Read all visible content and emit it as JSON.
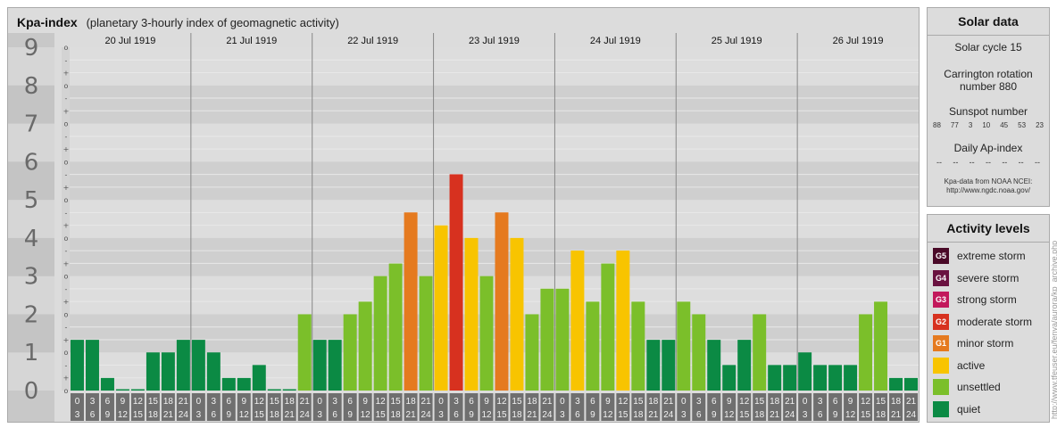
{
  "header": {
    "title": "Kpa-index",
    "subtitle": "(planetary 3-hourly index of geomagnetic activity)"
  },
  "chart_data": {
    "type": "bar",
    "title": "Kpa-index",
    "subtitle": "(planetary 3-hourly index of geomagnetic activity)",
    "ylim": [
      0,
      9
    ],
    "y_ticks": [
      "0",
      "1",
      "2",
      "3",
      "4",
      "5",
      "6",
      "7",
      "8",
      "9"
    ],
    "y_minor_ticks": [
      "o",
      "+",
      "-"
    ],
    "days": [
      "20 Jul 1919",
      "21 Jul 1919",
      "22 Jul 1919",
      "23 Jul 1919",
      "24 Jul 1919",
      "25 Jul 1919",
      "26 Jul 1919"
    ],
    "interval_top": [
      "0",
      "3",
      "6",
      "9",
      "12",
      "15",
      "18",
      "21"
    ],
    "interval_bottom": [
      "3",
      "6",
      "9",
      "12",
      "15",
      "18",
      "21",
      "24"
    ],
    "values": [
      1.33,
      1.33,
      0.33,
      0,
      0,
      1.0,
      1.0,
      1.33,
      1.33,
      1.0,
      0.33,
      0.33,
      0.67,
      0,
      0,
      2.0,
      1.33,
      1.33,
      2.0,
      2.33,
      3.0,
      3.33,
      4.67,
      3.0,
      4.33,
      5.67,
      4.0,
      3.0,
      4.67,
      4.0,
      2.0,
      2.67,
      2.67,
      3.67,
      2.33,
      3.33,
      3.67,
      2.33,
      1.33,
      1.33,
      2.33,
      2.0,
      1.33,
      0.67,
      1.33,
      2.0,
      0.67,
      0.67,
      1.0,
      0.67,
      0.67,
      0.67,
      2.0,
      2.33,
      0.33,
      0.33
    ],
    "levels": [
      "extreme storm",
      "severe storm",
      "strong storm",
      "moderate storm",
      "minor storm",
      "active",
      "unsettled",
      "quiet"
    ],
    "colors": {
      "quiet": "#0b8a44",
      "unsettled": "#7bbf2a",
      "active": "#f8c400",
      "minor_storm": "#e57a1f",
      "moderate_storm": "#d7311f",
      "strong_storm": "#c2185b",
      "severe_storm": "#6a1240",
      "extreme_storm": "#4a0a28"
    },
    "grid": true
  },
  "solar": {
    "heading": "Solar data",
    "cycle": "Solar cycle 15",
    "carrington": "Carrington rotation number 880",
    "sunspot_label": "Sunspot number",
    "sunspots": [
      "88",
      "77",
      "3",
      "10",
      "45",
      "53",
      "23"
    ],
    "ap_label": "Daily Ap-index",
    "ap_values": [
      "--",
      "--",
      "--",
      "--",
      "--",
      "--",
      "--"
    ],
    "note_line1": "Kpa-data from NOAA NCEI:",
    "note_line2": "http://www.ngdc.noaa.gov/"
  },
  "legend": {
    "heading": "Activity levels",
    "items": [
      {
        "code": "G5",
        "label": "extreme storm",
        "color": "#4a0a28"
      },
      {
        "code": "G4",
        "label": "severe storm",
        "color": "#6a1240"
      },
      {
        "code": "G3",
        "label": "strong storm",
        "color": "#c2185b"
      },
      {
        "code": "G2",
        "label": "moderate storm",
        "color": "#d7311f"
      },
      {
        "code": "G1",
        "label": "minor storm",
        "color": "#e57a1f"
      },
      {
        "code": "",
        "label": "active",
        "color": "#f8c400"
      },
      {
        "code": "",
        "label": "unsettled",
        "color": "#7bbf2a"
      },
      {
        "code": "",
        "label": "quiet",
        "color": "#0b8a44"
      }
    ]
  },
  "watermark": "http://www.tfeuser.eu/fenya/aurora/kp_archive.php"
}
